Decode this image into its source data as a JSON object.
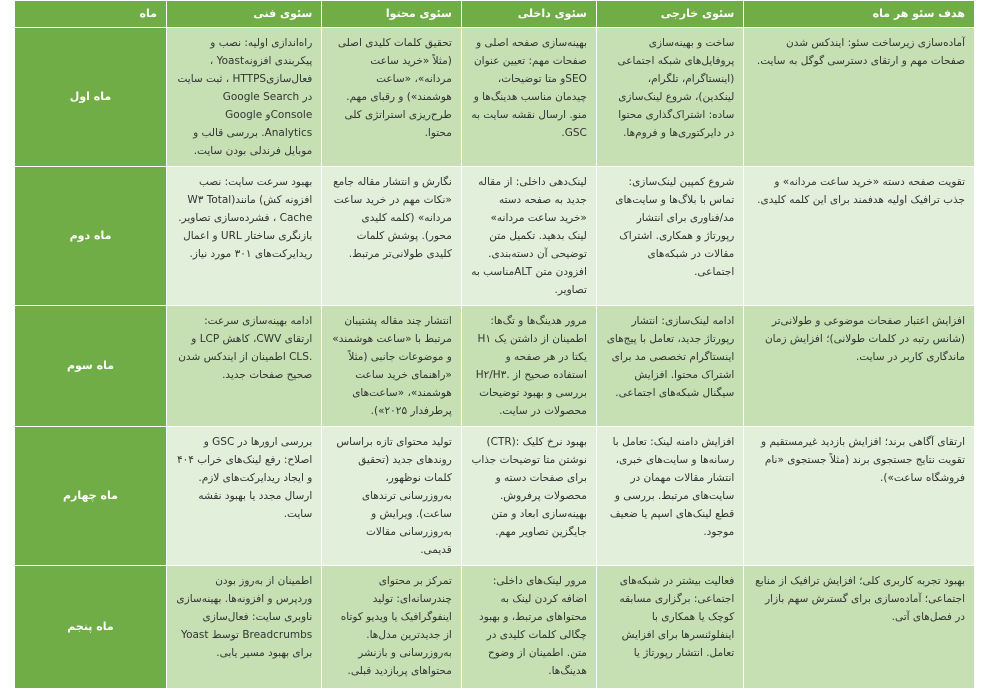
{
  "colors": {
    "header": "#70ad47",
    "row_odd": "#c6e0b4",
    "row_even": "#e2efda",
    "header_text": "#ffffff"
  },
  "headers": {
    "goal": "هدف سئو هر ماه",
    "external": "سئوی خارجی",
    "internal": "سئوی داخلی",
    "content": "سئوی محتوا",
    "technical": "سئوی فنی",
    "month": "ماه"
  },
  "rows": [
    {
      "goal": "آماده‌سازی زیرساخت سئو: ایندکس شدن صفحات مهم و ارتقای دسترسی گوگل به سایت.",
      "external": "ساخت و بهینه‌سازی پروفایل‌های شبکه اجتماعی (اینستاگرام، تلگرام، لینکدین)، شروع لینک‌سازی ساده: اشتراک‌گذاری محتوا در دایرکتوری‌ها و فروم‌ها.",
      "internal": "بهینه‌سازی صفحه اصلی و صفحات مهم: تعیین عنوان SEOو متا توضیحات، چیدمان مناسب هدینگ‌ها و منو. ارسال نقشه سایت به GSC.",
      "content": "تحقیق کلمات کلیدی اصلی (مثلاً «خرید ساعت مردانه»، «ساعت هوشمند») و رقبای مهم. طرح‌ریزی استراتژی کلی محتوا.",
      "technical": "راه‌اندازی اولیه: نصب و پیکربندی افزونهYoast ، فعال‌سازیHTTPS ، ثبت سایت در Google Search Consoleو Google Analytics. بررسی قالب و موبایل فرندلی بودن سایت.",
      "month": "ماه اول"
    },
    {
      "goal": "تقویت صفحه دسته «خرید ساعت مردانه» و جذب ترافیک اولیه هدفمند برای این کلمه کلیدی.",
      "external": "شروع کمپین لینک‌سازی: تماس با بلاگ‌ها و سایت‌های مد/فناوری برای انتشار رپورتاژ و همکاری. اشتراک مقالات در شبکه‌های اجتماعی.",
      "internal": "لینک‌دهی داخلی: از مقاله جدید به صفحه دسته «خرید ساعت مردانه» لینک بدهید. تکمیل متن توضیحی آن دسته‌بندی. افزودن متن ALTمناسب به تصاویر.",
      "content": "نگارش و انتشار مقاله جامع «نکات مهم در خرید ساعت مردانه» (کلمه کلیدی محور). پوشش کلمات کلیدی طولانی‌تر مرتبط.",
      "technical": "بهبود سرعت سایت: نصب افزونه کش) مانند(W۳ Total Cache ، فشرده‌سازی تصاویر. بازنگری ساختار URL و اعمال ریدایرکت‌های ۳۰۱ مورد نیاز.",
      "month": "ماه دوم"
    },
    {
      "goal": "افزایش اعتبار صفحات موضوعی و طولانی‌تر (شانس رتبه در کلمات طولانی)؛ افزایش زمان ماندگاری کاربر در سایت.",
      "external": "ادامه لینک‌سازی: انتشار رپورتاژ جدید، تعامل با پیج‌های اینستاگرام تخصصی مد برای اشتراک محتوا. افزایش سیگنال شبکه‌های اجتماعی.",
      "internal": "مرور هدینگ‌ها و تگ‌ها: اطمینان از داشتن یک H۱ یکتا در هر صفحه و استفاده صحیح از .H۲/H۳ بررسی و بهبود توضیحات محصولات در سایت.",
      "content": "انتشار چند مقاله پشتیبان مرتبط با «ساعت هوشمند» و موضوعات جانبی (مثلاً «راهنمای خرید ساعت هوشمند»، «ساعت‌های پرطرفدار ۲۰۲۵»).",
      "technical": "ادامه بهینه‌سازی سرعت: ارتقای CWV، کاهش LCP و .CLS اطمینان از ایندکس شدن صحیح صفحات جدید.",
      "month": "ماه سوم"
    },
    {
      "goal": "ارتقای آگاهی برند؛ افزایش بازدید غیرمستقیم و تقویت نتایج جستجوی برند (مثلاً جستجوی «نام فروشگاه ساعت»).",
      "external": "افزایش دامنه لینک: تعامل با رسانه‌ها و سایت‌های خبری، انتشار مقالات مهمان در سایت‌های مرتبط. بررسی و قطع لینک‌های اسپم یا ضعیف موجود.",
      "internal": "بهبود نرخ کلیک :(CTR) نوشتن متا توضیحات جذاب برای صفحات دسته و محصولات پرفروش. بهینه‌سازی ابعاد و متن جایگزین تصاویر مهم.",
      "content": "تولید محتوای تازه براساس روندهای جدید (تحقیق کلمات نوظهور، به‌روزرسانی ترندهای ساعت). ویرایش و به‌روزرسانی مقالات قدیمی.",
      "technical": "بررسی ارورها در GSC و اصلاح: رفع لینک‌های خراب ۴۰۴ و ایجاد ریدایرکت‌های لازم. ارسال مجدد یا بهبود نقشه سایت.",
      "month": "ماه چهارم"
    },
    {
      "goal": "بهبود تجربه کاربری کلی؛ افزایش ترافیک از منابع اجتماعی؛ آماده‌سازی برای گسترش سهم بازار در فصل‌های آتی.",
      "external": "فعالیت بیشتر در شبکه‌های اجتماعی: برگزاری مسابقه کوچک یا همکاری با اینفلوئنسرها برای افزایش تعامل. انتشار رپورتاژ یا",
      "internal": "مرور لینک‌های داخلی: اضافه کردن لینک به محتواهای مرتبط، و بهبود چگالی کلمات کلیدی در متن. اطمینان از وضوح هدینگ‌ها.",
      "content": "تمرکز بر محتوای چندرسانه‌ای: تولید اینفوگرافیک یا ویدیو کوتاه از جدیدترین مدل‌ها. به‌روزرسانی و بازنشر محتواهای پربازدید قبلی.",
      "technical": "اطمینان از به‌روز بودن وردپرس و افزونه‌ها. بهینه‌سازی ناوبری سایت: فعال‌سازی Breadcrumbs توسط Yoast برای بهبود مسیر یابی.",
      "month": "ماه پنجم"
    }
  ]
}
